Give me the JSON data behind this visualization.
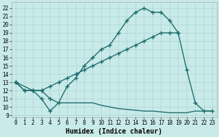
{
  "xlabel": "Humidex (Indice chaleur)",
  "bg_color": "#c8eae8",
  "grid_color": "#b0d8d5",
  "line_color": "#1a6b6b",
  "xlim": [
    -0.5,
    23.5
  ],
  "ylim": [
    8.8,
    22.7
  ],
  "yticks": [
    9,
    10,
    11,
    12,
    13,
    14,
    15,
    16,
    17,
    18,
    19,
    20,
    21,
    22
  ],
  "xticks": [
    0,
    1,
    2,
    3,
    4,
    5,
    6,
    7,
    8,
    9,
    10,
    11,
    12,
    13,
    14,
    15,
    16,
    17,
    18,
    19,
    20,
    21,
    22,
    23
  ],
  "curve1_x": [
    0,
    1,
    2,
    3,
    4,
    5,
    6,
    7,
    8,
    9,
    10,
    11,
    12,
    13,
    14,
    15,
    16,
    17,
    18,
    19,
    20,
    21,
    22,
    23
  ],
  "curve1_y": [
    13,
    12,
    12,
    12,
    11,
    10.5,
    12.5,
    13.5,
    15,
    16,
    17,
    17.5,
    19,
    20.5,
    21.5,
    22.0,
    21.5,
    21.5,
    20.5,
    19,
    14.5,
    10.5,
    9.5,
    9.5
  ],
  "curve2_x": [
    0,
    2,
    3,
    4,
    5,
    6,
    7,
    8,
    9,
    10,
    11,
    12,
    13,
    14,
    15,
    16,
    17,
    18,
    19
  ],
  "curve2_y": [
    13,
    12,
    12,
    12.5,
    13,
    13.5,
    14,
    14.5,
    15,
    15.5,
    16,
    16.5,
    17,
    17.5,
    18,
    18.5,
    19,
    19,
    19
  ],
  "curve3_x": [
    0,
    1,
    2,
    3,
    4,
    5,
    6,
    7,
    8,
    9,
    10,
    11,
    12,
    13,
    14,
    15,
    16,
    17,
    18,
    19,
    20,
    21,
    22,
    23
  ],
  "curve3_y": [
    13,
    12,
    12,
    11,
    9.5,
    10.5,
    10.5,
    10.5,
    10.5,
    10.5,
    10.2,
    10.0,
    9.8,
    9.7,
    9.6,
    9.5,
    9.5,
    9.4,
    9.3,
    9.3,
    9.3,
    9.5,
    9.5,
    9.5
  ],
  "curve1_markers_x": [
    0,
    1,
    2,
    3,
    4,
    5,
    6,
    7,
    8,
    9,
    10,
    11,
    12,
    13,
    14,
    15,
    16,
    17,
    18,
    19,
    20,
    21,
    22,
    23
  ],
  "curve1_markers_y": [
    13,
    12,
    12,
    12,
    11,
    10.5,
    12.5,
    13.5,
    15,
    16,
    17,
    17.5,
    19,
    20.5,
    21.5,
    22.0,
    21.5,
    21.5,
    20.5,
    19,
    14.5,
    10.5,
    9.5,
    9.5
  ]
}
